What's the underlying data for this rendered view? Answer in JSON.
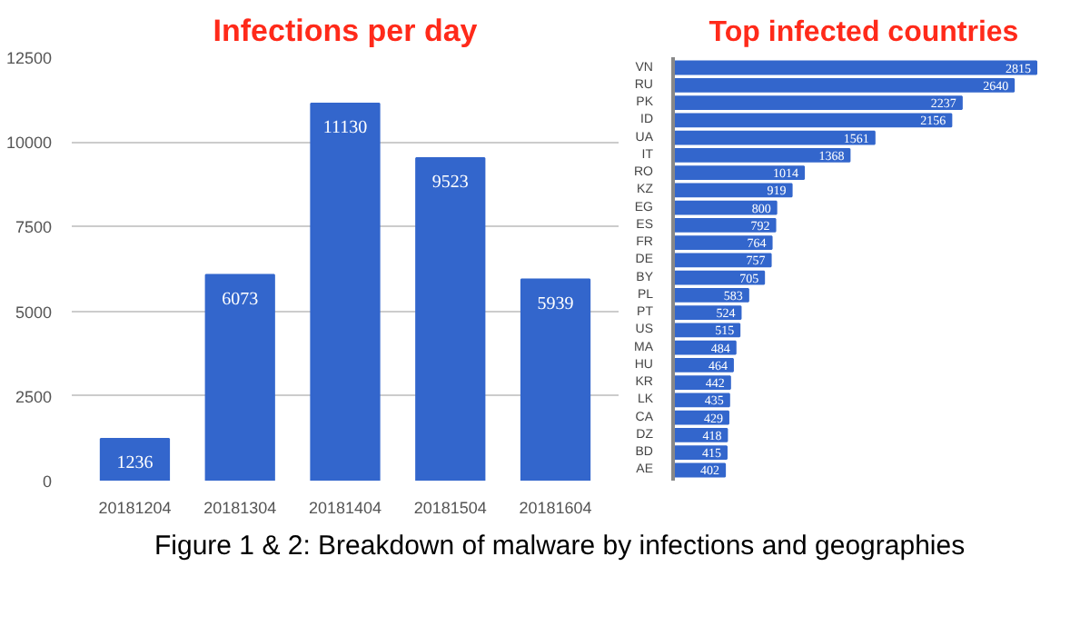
{
  "chart_data": [
    {
      "type": "bar",
      "title": "Infections per day",
      "categories": [
        "20181204",
        "20181304",
        "20181404",
        "20181504",
        "20181604"
      ],
      "values": [
        1236,
        6073,
        11130,
        9523,
        5939
      ],
      "color": "#3366cc",
      "ylim": [
        0,
        12500
      ],
      "yticks": [
        0,
        2500,
        5000,
        7500,
        10000,
        12500
      ],
      "grid": "y",
      "data_labels": true
    },
    {
      "type": "bar",
      "orientation": "horizontal",
      "title": "Top infected countries",
      "categories": [
        "VN",
        "RU",
        "PK",
        "ID",
        "UA",
        "IT",
        "RO",
        "KZ",
        "EG",
        "ES",
        "FR",
        "DE",
        "BY",
        "PL",
        "PT",
        "US",
        "MA",
        "HU",
        "KR",
        "LK",
        "CA",
        "DZ",
        "BD",
        "AE"
      ],
      "values": [
        2815,
        2640,
        2237,
        2156,
        1561,
        1368,
        1014,
        919,
        800,
        792,
        764,
        757,
        705,
        583,
        524,
        515,
        484,
        464,
        442,
        435,
        429,
        418,
        415,
        402
      ],
      "color": "#3366cc",
      "data_labels": true,
      "annotations": [
        "Figure 1 & 2: Breakdown of malware by infections and geographies"
      ]
    }
  ]
}
